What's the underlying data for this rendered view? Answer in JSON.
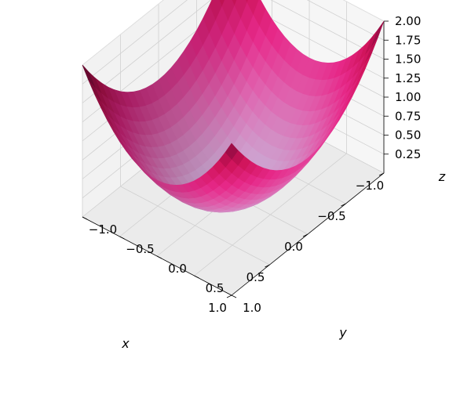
{
  "chart_data": {
    "type": "surface3d",
    "function": "z = x^2 + y^2",
    "x": [
      -1.0,
      -0.8,
      -0.6,
      -0.4,
      -0.2,
      0.0,
      0.2,
      0.4,
      0.6,
      0.8,
      1.0
    ],
    "y": [
      -1.0,
      -0.8,
      -0.6,
      -0.4,
      -0.2,
      0.0,
      0.2,
      0.4,
      0.6,
      0.8,
      1.0
    ],
    "z_range": [
      0.0,
      2.0
    ],
    "xlim": [
      -1.0,
      1.0
    ],
    "ylim": [
      -1.0,
      1.0
    ],
    "zlim": [
      0.0,
      2.0
    ],
    "xlabel": "x",
    "ylabel": "y",
    "zlabel": "z",
    "x_ticks": [
      "−1.0",
      "−0.5",
      "0.0",
      "0.5",
      "1.0"
    ],
    "y_ticks": [
      "−1.0",
      "−0.5",
      "0.0",
      "0.5",
      "1.0"
    ],
    "z_ticks": [
      "0.25",
      "0.50",
      "0.75",
      "1.00",
      "1.25",
      "1.50",
      "1.75",
      "2.00"
    ],
    "x_tick_values": [
      -1.0,
      -0.5,
      0.0,
      0.5,
      1.0
    ],
    "y_tick_values": [
      -1.0,
      -0.5,
      0.0,
      0.5,
      1.0
    ],
    "z_tick_values": [
      0.25,
      0.5,
      0.75,
      1.0,
      1.25,
      1.5,
      1.75,
      2.0
    ],
    "colormap": "PuRd (pink to lavender)",
    "grid": true,
    "colors": {
      "surface_low": "#c9b3d8",
      "surface_mid": "#e7298a",
      "surface_high": "#7f0a3c",
      "pane": "#f2f2f2",
      "grid": "#d0d0d0"
    }
  }
}
